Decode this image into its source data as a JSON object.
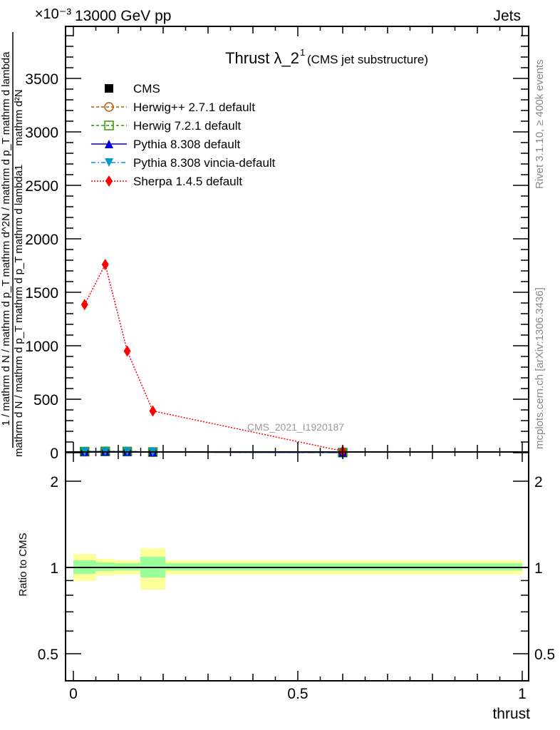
{
  "header": {
    "energy": "13000 GeV pp",
    "category": "Jets",
    "multiplier": "×10⁻³"
  },
  "side_labels": {
    "rivet": "Rivet 3.1.10, ≥ 400k events",
    "mcplots": "mcplots.cern.ch [arXiv:1306.3436]"
  },
  "chart_data": {
    "type": "line",
    "title": "Thrust λ_2",
    "title_sup": "1",
    "subtitle": "(CMS jet substructure)",
    "watermark": "CMS_2021_I1920187",
    "xlabel": "thrust",
    "ylabel": "1 / mathrm d N / mathrm d p_T mathrm d^2N / mathrm d p_T mathrm d lambda",
    "ylabel_parts": {
      "numerator_top": "1",
      "main": "mathrm d N / mathrm d p_T mathrm d p_T mathrm d lambda",
      "numerator": "mathrm d²N"
    },
    "ratio_ylabel": "Ratio to CMS",
    "xlim": [
      0,
      1
    ],
    "ylim": [
      0,
      3950
    ],
    "ratio_ylim": [
      0.42,
      2.4
    ],
    "ratio_scale": "log",
    "x_ticks": [
      {
        "v": 0,
        "label": "0"
      },
      {
        "v": 0.5,
        "label": "0.5"
      },
      {
        "v": 1,
        "label": "1"
      }
    ],
    "y_ticks": [
      {
        "v": 0,
        "label": "0"
      },
      {
        "v": 500,
        "label": "500"
      },
      {
        "v": 1000,
        "label": "1000"
      },
      {
        "v": 1500,
        "label": "1500"
      },
      {
        "v": 2000,
        "label": "2000"
      },
      {
        "v": 2500,
        "label": "2500"
      },
      {
        "v": 3000,
        "label": "3000"
      },
      {
        "v": 3500,
        "label": "3500"
      }
    ],
    "ratio_ticks": [
      {
        "v": 0.5,
        "label": "0.5"
      },
      {
        "v": 1,
        "label": "1"
      },
      {
        "v": 2,
        "label": "2"
      }
    ],
    "legend_position": "top-left",
    "bin_edges": [
      0,
      0.05,
      0.092,
      0.149,
      0.205,
      1.0
    ],
    "ratio_bands": {
      "yellow": [
        [
          0.897,
          1.115
        ],
        [
          0.939,
          1.071
        ],
        [
          0.945,
          1.06
        ],
        [
          0.837,
          1.167
        ],
        [
          0.945,
          1.06
        ]
      ],
      "green": [
        [
          0.95,
          1.059
        ],
        [
          0.972,
          1.04
        ],
        [
          0.975,
          1.035
        ],
        [
          0.923,
          1.09
        ],
        [
          0.975,
          1.035
        ]
      ]
    },
    "series": [
      {
        "name": "CMS",
        "color": "#000000",
        "marker": "square",
        "x": [
          0.025,
          0.071,
          0.12,
          0.177,
          0.6
        ],
        "y": [
          10,
          12,
          11,
          6,
          1
        ]
      },
      {
        "name": "Herwig++ 2.7.1 default",
        "color": "#b35900",
        "marker": "circle-open",
        "dash": "4,3",
        "x": [
          0.025,
          0.071,
          0.12,
          0.177,
          0.6
        ],
        "y": [
          10,
          12,
          11,
          6,
          1
        ]
      },
      {
        "name": "Herwig 7.2.1 default",
        "color": "#339900",
        "marker": "square-open",
        "dash": "4,3",
        "x": [
          0.025,
          0.071,
          0.12,
          0.177,
          0.6
        ],
        "y": [
          10,
          12,
          11,
          6,
          1
        ]
      },
      {
        "name": "Pythia 8.308 default",
        "color": "#0000dd",
        "marker": "triangle-up",
        "dash": "",
        "x": [
          0.025,
          0.071,
          0.12,
          0.177,
          0.6
        ],
        "y": [
          10,
          12,
          11,
          6,
          1
        ]
      },
      {
        "name": "Pythia 8.308 vincia-default",
        "color": "#0099cc",
        "marker": "triangle-down",
        "dash": "6,3,2,3",
        "x": [
          0.025,
          0.071,
          0.12,
          0.177,
          0.6
        ],
        "y": [
          10,
          12,
          11,
          6,
          1
        ]
      },
      {
        "name": "Sherpa 1.4.5 default",
        "color": "#ff0000",
        "marker": "diamond",
        "dash": "2,2",
        "x": [
          0.025,
          0.071,
          0.12,
          0.177,
          0.6
        ],
        "y": [
          1385,
          1760,
          950,
          390,
          15
        ]
      }
    ]
  }
}
